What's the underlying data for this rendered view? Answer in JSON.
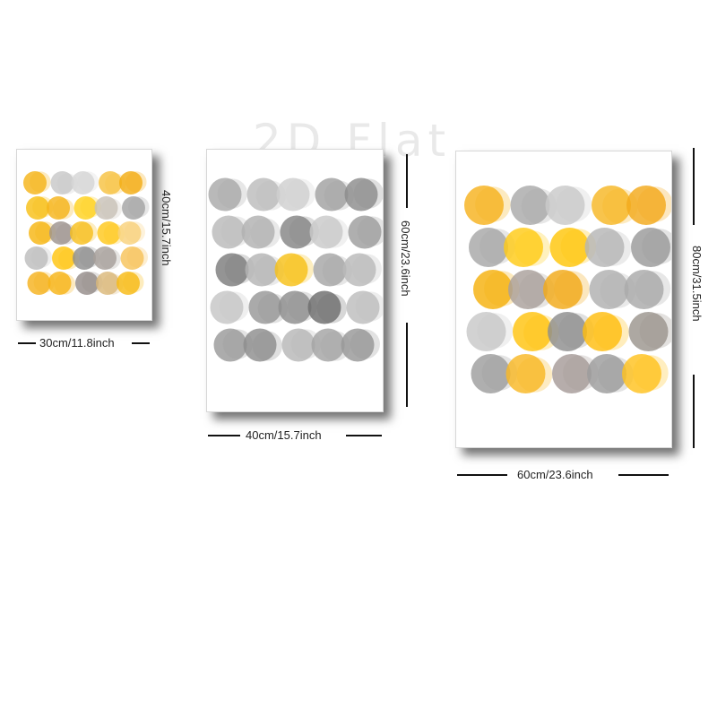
{
  "watermark": "2D Flat",
  "colors": {
    "yellow": "#f7b500",
    "light_yellow": "#f9c842",
    "gray": "#8d8d8d",
    "light_gray": "#c3c3c3",
    "taupe": "#9b918c"
  },
  "panels": [
    {
      "id": "small",
      "width_label": "30cm/11.8inch",
      "height_label": "40cm/15.7inch",
      "grid": [
        [
          "#f5b41a",
          "#c8c8c8",
          "#d6d6d6",
          "#f7c242",
          "#f3ad15"
        ],
        [
          "#f8bf16",
          "#f5b51c",
          "#ffd21e",
          "#c9c2b8",
          "#a4a4a4"
        ],
        [
          "#f6b612",
          "#9d948f",
          "#f8bf1f",
          "#ffc81c",
          "#f9d27d"
        ],
        [
          "#bdbdbd",
          "#ffc410",
          "#8f8f8f",
          "#a7a09b",
          "#f7c35a"
        ],
        [
          "#f5b21e",
          "#f7b519",
          "#958c8a",
          "#dbb87a",
          "#f8bb15"
        ]
      ]
    },
    {
      "id": "medium",
      "width_label": "40cm/15.7inch",
      "height_label": "60cm/23.6inch",
      "grid": [
        [
          "#a9a9a9",
          "#bcbcbc",
          "#cfcfcf",
          "#a1a1a1",
          "#8c8c8c"
        ],
        [
          "#bababa",
          "#b1b1b1",
          "#858585",
          "#c9c9c9",
          "#9e9e9e"
        ],
        [
          "#7c7c7c",
          "#b4b4b4",
          "#f7c119",
          "#a6a6a6",
          "#b9b9b9"
        ],
        [
          "#c6c6c6",
          "#979797",
          "#8e8e8e",
          "#6e6e6e",
          "#bdbdbd"
        ],
        [
          "#9a9a9a",
          "#8d8d8d",
          "#b7b7b7",
          "#a3a3a3",
          "#979797"
        ]
      ]
    },
    {
      "id": "large",
      "width_label": "60cm/23.6inch",
      "height_label": "80cm/31.5inch",
      "grid": [
        [
          "#f6b21e",
          "#a9a9a9",
          "#c9c9c9",
          "#f7b724",
          "#f3a91c"
        ],
        [
          "#a7a7a7",
          "#ffcb16",
          "#ffc60a",
          "#b6b6b6",
          "#9a9a9a"
        ],
        [
          "#f5b10d",
          "#a9a09b",
          "#f2aa18",
          "#b0b0b0",
          "#a9a9a9"
        ],
        [
          "#c8c8c8",
          "#ffc30f",
          "#8e8e8e",
          "#ffbd0f",
          "#9b958d"
        ],
        [
          "#9e9e9e",
          "#f9b824",
          "#a69b98",
          "#9c9c9c",
          "#ffc21e"
        ]
      ]
    }
  ]
}
